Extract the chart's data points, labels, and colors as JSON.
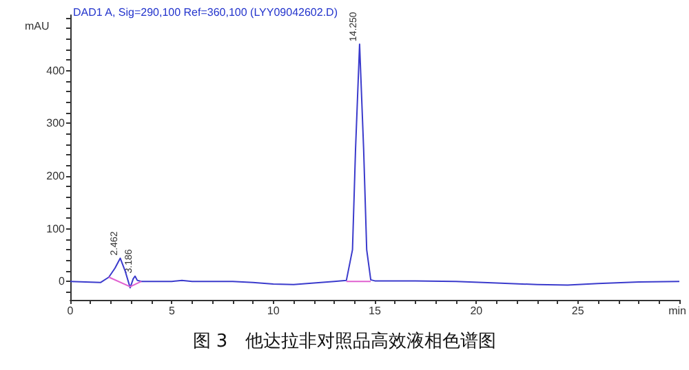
{
  "chart_data": {
    "type": "line",
    "title": "DAD1 A, Sig=290,100 Ref=360,100 (LYY09042602.D)",
    "subtitle": "图 3　他达拉非对照品高效液相色谱图",
    "xlabel": "min",
    "ylabel": "mAU",
    "xlim": [
      0,
      30
    ],
    "xticks": [
      0,
      5,
      10,
      15,
      20,
      25
    ],
    "ylim": [
      -35,
      505
    ],
    "yticks": [
      0,
      100,
      200,
      300,
      400
    ],
    "grid": false,
    "marker": "none",
    "line_style": "solid",
    "series": [
      {
        "color": "#3a3acc",
        "x": [
          0,
          1.5,
          1.9,
          2.2,
          2.46,
          2.7,
          2.95,
          3.1,
          3.19,
          3.3,
          3.5,
          5,
          5.5,
          6,
          8,
          9,
          10,
          11,
          12,
          13,
          13.6,
          13.9,
          14.05,
          14.25,
          14.45,
          14.6,
          14.8,
          15,
          17,
          19,
          21,
          23,
          24.5,
          26,
          28,
          30
        ],
        "values": [
          0,
          -2,
          8,
          25,
          44,
          20,
          -12,
          5,
          10,
          2,
          0,
          0,
          2,
          0,
          0,
          -2,
          -5,
          -6,
          -3,
          0,
          2,
          60,
          250,
          450,
          250,
          60,
          3,
          1,
          1,
          0,
          -3,
          -6,
          -7,
          -4,
          -1,
          0
        ]
      },
      {
        "color": "#e060d0",
        "x": [
          1.9,
          2.95
        ],
        "values": [
          8,
          -10
        ]
      },
      {
        "color": "#e060d0",
        "x": [
          2.95,
          3.5
        ],
        "values": [
          -10,
          0
        ]
      },
      {
        "color": "#e060d0",
        "x": [
          13.6,
          14.8
        ],
        "values": [
          0,
          0
        ]
      }
    ],
    "annotations": [
      {
        "text": "2.462",
        "x": 2.462,
        "y": 44
      },
      {
        "text": "3.186",
        "x": 3.186,
        "y": 10
      },
      {
        "text": "14.250",
        "x": 14.25,
        "y": 450
      }
    ]
  }
}
